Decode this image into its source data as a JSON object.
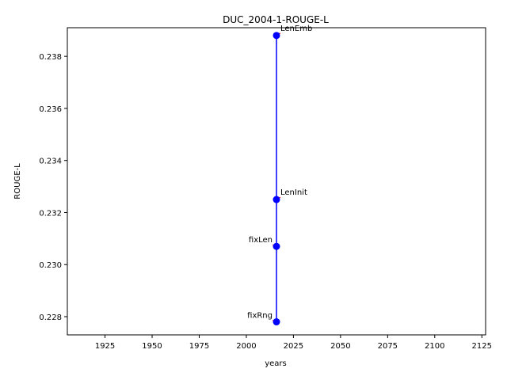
{
  "chart_data": {
    "type": "scatter",
    "title": "DUC_2004-1-ROUGE-L",
    "xlabel": "years",
    "ylabel": "ROUGE-L",
    "xlim": [
      1905,
      2127
    ],
    "ylim": [
      0.2273,
      0.2391
    ],
    "xticks": [
      1925,
      1950,
      1975,
      2000,
      2025,
      2050,
      2075,
      2100,
      2125
    ],
    "yticks": [
      0.228,
      0.23,
      0.232,
      0.234,
      0.236,
      0.238
    ],
    "grid": false,
    "line_color": "#0000ff",
    "marker_color": "#0000ff",
    "arrow_color": "#ff0000",
    "points": [
      {
        "x": 2016,
        "y": 0.2388,
        "label": "LenEmb"
      },
      {
        "x": 2016,
        "y": 0.2325,
        "label": "LenInit"
      },
      {
        "x": 2016,
        "y": 0.2307,
        "label": "fixLen"
      },
      {
        "x": 2016,
        "y": 0.2278,
        "label": "fixRng"
      }
    ]
  }
}
